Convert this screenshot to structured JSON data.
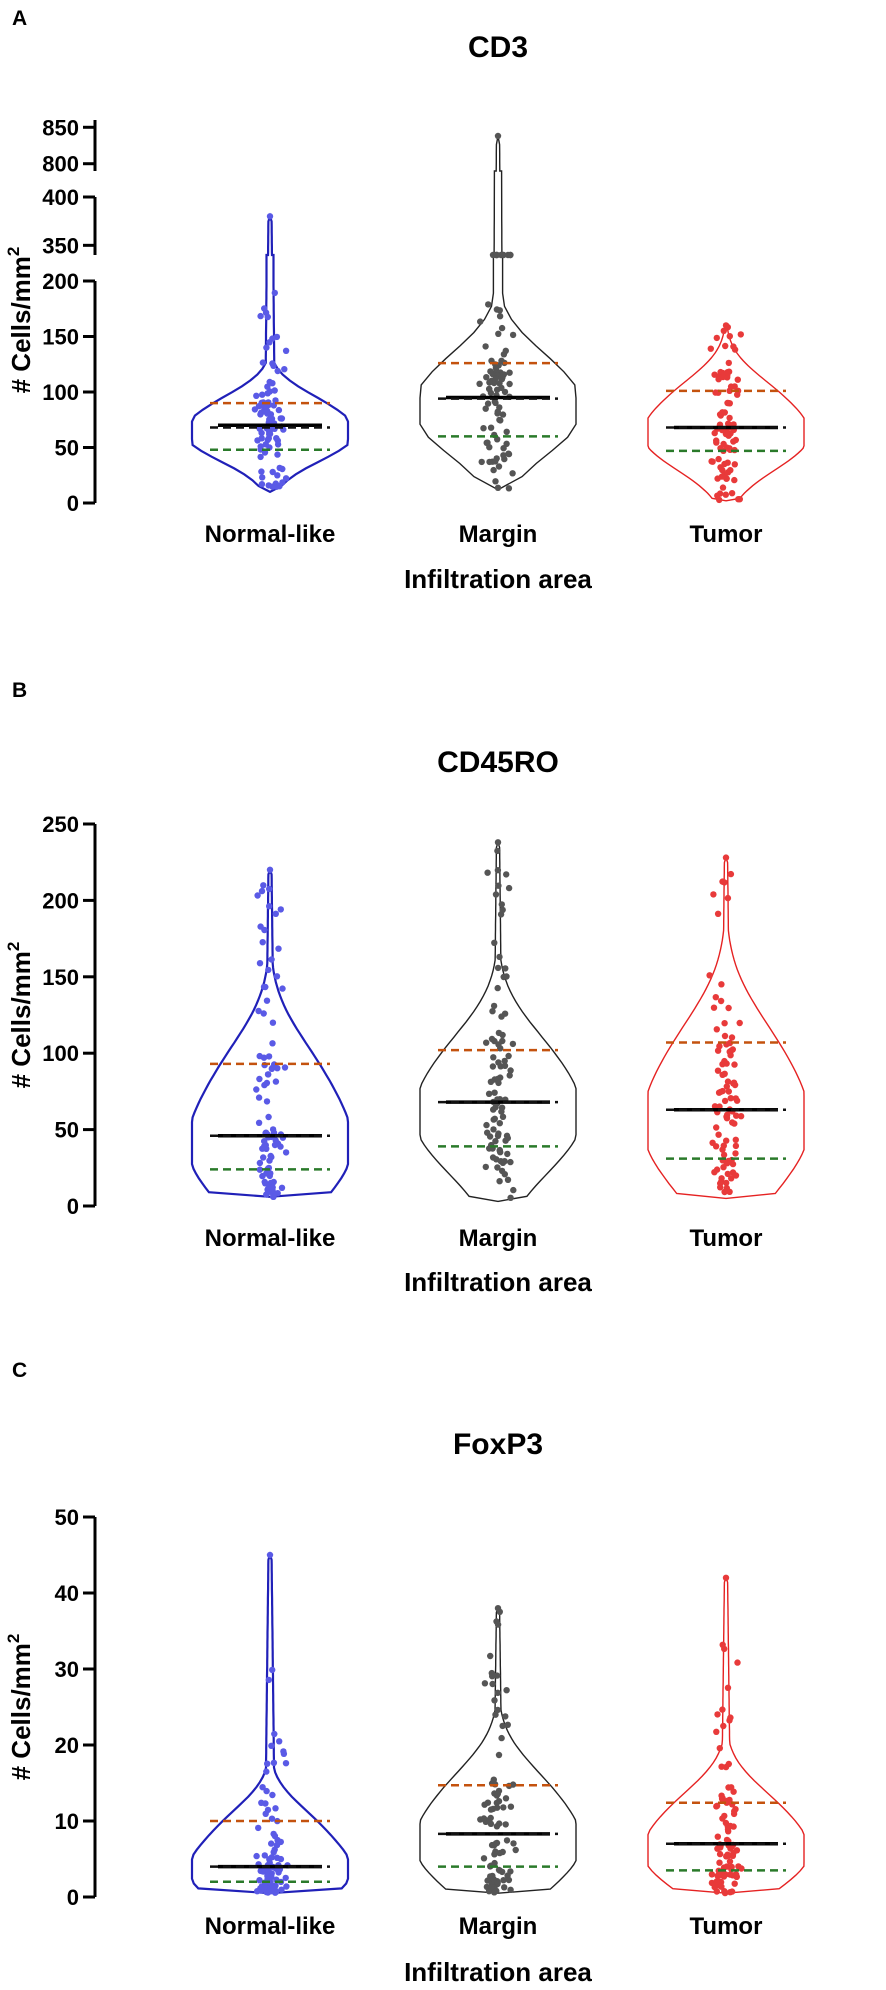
{
  "chart_data": [
    {
      "panel": "A",
      "type": "violin",
      "title": "CD3",
      "xlabel": "Infiltration area",
      "ylabel": "# Cells/mm",
      "ylabel_sup": "2",
      "categories": [
        "Normal-like",
        "Margin",
        "Tumor"
      ],
      "colors": {
        "Normal-like": "#2020b8",
        "Margin": "#222222",
        "Tumor": "#e52222"
      },
      "dot_colors": {
        "Normal-like": "#5a5ae6",
        "Margin": "#555555",
        "Tumor": "#e83a3a"
      },
      "y_axis_broken": true,
      "y_segments": [
        {
          "range": [
            0,
            200
          ],
          "ticks": [
            0,
            50,
            100,
            150,
            200
          ]
        },
        {
          "range": [
            340,
            400
          ],
          "ticks": [
            350,
            400
          ]
        },
        {
          "range": [
            790,
            860
          ],
          "ticks": [
            800,
            850
          ]
        }
      ],
      "series": [
        {
          "name": "Normal-like",
          "min": 10,
          "max": 380,
          "median": 70,
          "mean": 68,
          "q1": 48,
          "q3": 90
        },
        {
          "name": "Margin",
          "min": 12,
          "max": 838,
          "median": 95,
          "mean": 94,
          "q1": 60,
          "q3": 126
        },
        {
          "name": "Tumor",
          "min": 2,
          "max": 160,
          "median": 68,
          "mean": 68,
          "q1": 47,
          "q3": 101
        }
      ]
    },
    {
      "panel": "B",
      "type": "violin",
      "title": "CD45RO",
      "xlabel": "Infiltration area",
      "ylabel": "# Cells/mm",
      "ylabel_sup": "2",
      "categories": [
        "Normal-like",
        "Margin",
        "Tumor"
      ],
      "colors": {
        "Normal-like": "#2020b8",
        "Margin": "#222222",
        "Tumor": "#e52222"
      },
      "dot_colors": {
        "Normal-like": "#5a5ae6",
        "Margin": "#555555",
        "Tumor": "#e83a3a"
      },
      "ylim": [
        0,
        250
      ],
      "yticks": [
        0,
        50,
        100,
        150,
        200,
        250
      ],
      "series": [
        {
          "name": "Normal-like",
          "min": 6,
          "max": 220,
          "median": 46,
          "mean": 46,
          "q1": 24,
          "q3": 93
        },
        {
          "name": "Margin",
          "min": 3,
          "max": 238,
          "median": 68,
          "mean": 68,
          "q1": 39,
          "q3": 102
        },
        {
          "name": "Tumor",
          "min": 5,
          "max": 228,
          "median": 63,
          "mean": 63,
          "q1": 31,
          "q3": 107
        }
      ]
    },
    {
      "panel": "C",
      "type": "violin",
      "title": "FoxP3",
      "xlabel": "Infiltration area",
      "ylabel": "# Cells/mm",
      "ylabel_sup": "2",
      "categories": [
        "Normal-like",
        "Margin",
        "Tumor"
      ],
      "colors": {
        "Normal-like": "#2020b8",
        "Margin": "#222222",
        "Tumor": "#e52222"
      },
      "dot_colors": {
        "Normal-like": "#5a5ae6",
        "Margin": "#555555",
        "Tumor": "#e83a3a"
      },
      "ylim": [
        0,
        50
      ],
      "yticks": [
        0,
        10,
        20,
        30,
        40,
        50
      ],
      "series": [
        {
          "name": "Normal-like",
          "min": 0.5,
          "max": 45,
          "median": 4,
          "mean": 4,
          "q1": 2,
          "q3": 10
        },
        {
          "name": "Margin",
          "min": 0.5,
          "max": 38,
          "median": 8.3,
          "mean": 8.3,
          "q1": 4,
          "q3": 14.7
        },
        {
          "name": "Tumor",
          "min": 0.5,
          "max": 42,
          "median": 7,
          "mean": 7,
          "q1": 3.5,
          "q3": 12.4
        }
      ]
    }
  ],
  "line_colors": {
    "q3": "#c4520e",
    "mean": "#111111",
    "q1": "#2a7a2a",
    "median": "#000000"
  }
}
